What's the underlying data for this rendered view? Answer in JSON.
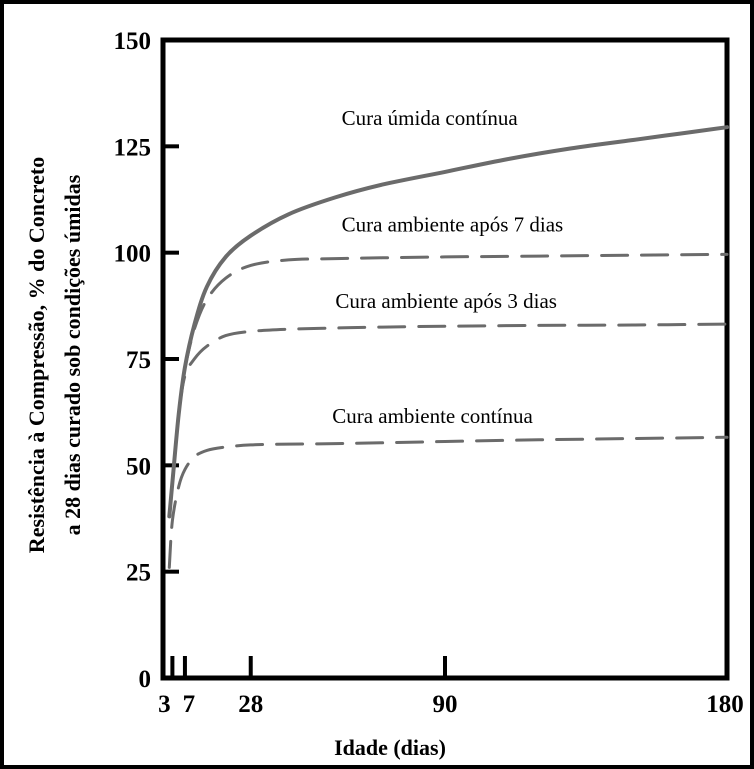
{
  "chart_data": {
    "type": "line",
    "title": "",
    "xlabel": "Idade (dias)",
    "ylabel_lines": [
      "Resistência à Compressão, % do Concreto",
      "a 28 dias curado sob condições úmidas"
    ],
    "xlim": [
      0,
      180
    ],
    "ylim": [
      0,
      150
    ],
    "x_ticks": [
      {
        "value": 3,
        "label": "3"
      },
      {
        "value": 7,
        "label": "7"
      },
      {
        "value": 28,
        "label": "28"
      },
      {
        "value": 90,
        "label": "90"
      },
      {
        "value": 180,
        "label": "180"
      }
    ],
    "y_ticks": [
      {
        "value": 0,
        "label": "0"
      },
      {
        "value": 25,
        "label": "25"
      },
      {
        "value": 50,
        "label": "50"
      },
      {
        "value": 75,
        "label": "75"
      },
      {
        "value": 100,
        "label": "100"
      },
      {
        "value": 125,
        "label": "125"
      },
      {
        "value": 150,
        "label": "150"
      }
    ],
    "grid": false,
    "legend": "none",
    "series": [
      {
        "name": "Cura úmida contínua",
        "style": "solid",
        "color": "#6b6b6b",
        "label_at": [
          57,
          130
        ],
        "x": [
          2,
          3,
          5,
          7,
          10,
          14,
          20,
          28,
          40,
          55,
          70,
          90,
          110,
          130,
          150,
          165,
          180
        ],
        "y": [
          38,
          46,
          62,
          73,
          83,
          92,
          99,
          104,
          109,
          113,
          116,
          119,
          122,
          124.5,
          126.5,
          128,
          129.5
        ]
      },
      {
        "name": "Cura ambiente após 7 dias",
        "style": "dashed",
        "color": "#6b6b6b",
        "label_at": [
          57,
          105
        ],
        "x": [
          7,
          10,
          14,
          20,
          28,
          40,
          55,
          70,
          90,
          120,
          150,
          180
        ],
        "y": [
          73,
          82,
          89,
          94,
          97,
          98.3,
          98.6,
          98.8,
          99,
          99.2,
          99.4,
          99.6
        ]
      },
      {
        "name": "Cura ambiente após 3 dias",
        "style": "dashed",
        "color": "#6b6b6b",
        "label_at": [
          55,
          87
        ],
        "x": [
          3,
          5,
          7,
          10,
          14,
          20,
          28,
          40,
          55,
          70,
          90,
          120,
          150,
          180
        ],
        "y": [
          46,
          62,
          71,
          75,
          78,
          80.5,
          81.5,
          82,
          82.3,
          82.5,
          82.7,
          82.9,
          83,
          83.2
        ]
      },
      {
        "name": "Cura ambiente contínua",
        "style": "dashed",
        "color": "#6b6b6b",
        "label_at": [
          54,
          60
        ],
        "x": [
          2,
          3,
          5,
          7,
          10,
          14,
          20,
          28,
          40,
          55,
          70,
          90,
          120,
          150,
          180
        ],
        "y": [
          26,
          37,
          45,
          49,
          52,
          53.5,
          54.3,
          54.8,
          55,
          55.1,
          55.3,
          55.6,
          56,
          56.3,
          56.6
        ]
      }
    ]
  }
}
